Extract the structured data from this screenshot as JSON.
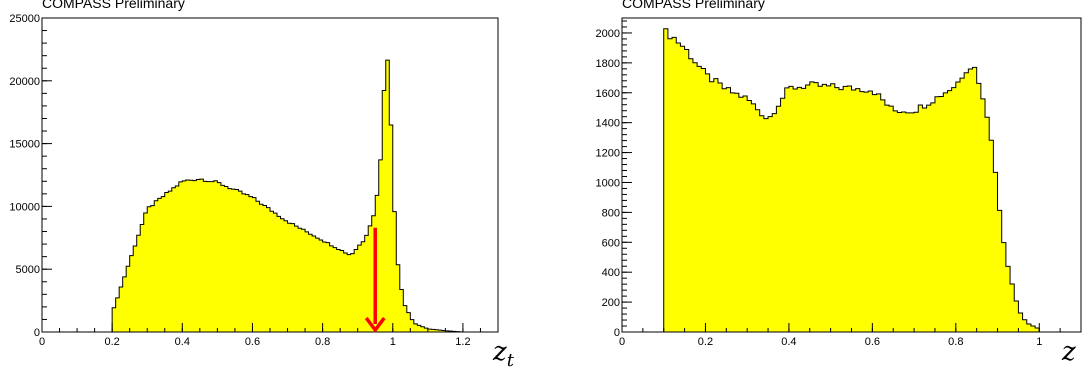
{
  "charts": {
    "left": {
      "label_main": "z",
      "label_sub": "t"
    },
    "right": {
      "label_main": "z"
    }
  },
  "chart_data": [
    {
      "type": "area",
      "title": "COMPASS Preliminary",
      "xlabel": "z_t",
      "ylabel": "",
      "xlim": [
        0,
        1.3
      ],
      "ylim": [
        0,
        25000
      ],
      "xticks": [
        "0",
        "0.2",
        "0.4",
        "0.6",
        "0.8",
        "1",
        "1.2"
      ],
      "yticks": [
        "0",
        "5000",
        "10000",
        "15000",
        "20000",
        "25000"
      ],
      "fill_color": "#ffff00",
      "grid": false,
      "annotation": {
        "type": "arrow",
        "x": 0.95,
        "y_from": 8300,
        "y_to": 0,
        "color": "#ff0000"
      },
      "x": [
        0.2,
        0.3,
        0.4,
        0.45,
        0.5,
        0.6,
        0.7,
        0.8,
        0.88,
        0.92,
        0.95,
        0.97,
        0.98,
        0.99,
        1.0,
        1.01,
        1.03,
        1.06,
        1.1,
        1.15,
        1.2
      ],
      "y": [
        1500,
        9800,
        12000,
        12200,
        11900,
        10700,
        8800,
        7300,
        6100,
        7400,
        9600,
        15000,
        23700,
        20000,
        12800,
        6400,
        2400,
        700,
        250,
        100,
        0
      ]
    },
    {
      "type": "area",
      "title": "COMPASS Preliminary",
      "xlabel": "z",
      "ylabel": "",
      "xlim": [
        0,
        1.1
      ],
      "ylim": [
        0,
        2100
      ],
      "xticks": [
        "0",
        "0.2",
        "0.4",
        "0.6",
        "0.8",
        "1"
      ],
      "yticks": [
        "0",
        "200",
        "400",
        "600",
        "800",
        "1000",
        "1200",
        "1400",
        "1600",
        "1800",
        "2000"
      ],
      "fill_color": "#ffff00",
      "grid": false,
      "x": [
        0.1,
        0.12,
        0.15,
        0.2,
        0.25,
        0.3,
        0.35,
        0.4,
        0.45,
        0.5,
        0.55,
        0.6,
        0.65,
        0.7,
        0.75,
        0.8,
        0.83,
        0.85,
        0.86,
        0.87,
        0.88,
        0.89,
        0.9,
        0.92,
        0.95,
        0.97,
        1.0
      ],
      "y": [
        2010,
        1980,
        1900,
        1720,
        1620,
        1560,
        1420,
        1630,
        1650,
        1640,
        1630,
        1620,
        1480,
        1480,
        1560,
        1650,
        1780,
        1760,
        1600,
        1500,
        1400,
        1200,
        920,
        500,
        150,
        60,
        20
      ]
    }
  ]
}
